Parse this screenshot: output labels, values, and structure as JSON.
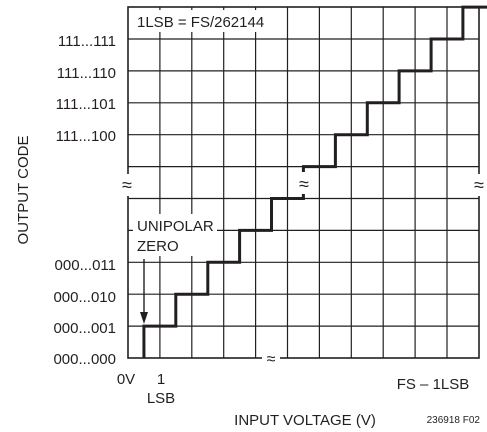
{
  "chart_data": {
    "type": "line",
    "title": "",
    "annotation_lsb": "1LSB = FS/262144",
    "xlabel": "INPUT VOLTAGE (V)",
    "ylabel": "OUTPUT CODE",
    "x_tick_labels": {
      "start": "0V",
      "lsb_top": "1",
      "lsb_bottom": "LSB",
      "end": "FS – 1LSB"
    },
    "y_tick_labels_top": [
      "111...111",
      "111...110",
      "111...101",
      "111...100"
    ],
    "y_tick_labels_bottom": [
      "000...011",
      "000...010",
      "000...001",
      "000...000"
    ],
    "break_symbol": "≈",
    "unipolar_zero_top": "UNIPOLAR",
    "unipolar_zero_bottom": "ZERO",
    "figure_code": "236918 F02",
    "grid": true,
    "series": [
      {
        "x": [
          0.5,
          1.5,
          1.5,
          2.5,
          2.5,
          3.5,
          3.5,
          4.5,
          4.5,
          5.5,
          5.5,
          6.5,
          6.5,
          7.5,
          7.5,
          8.5,
          8.5,
          9.5,
          9.5,
          10.5,
          10.5,
          11.5
        ],
        "y": [
          1,
          1,
          2,
          2,
          3,
          3,
          4,
          4,
          5,
          5,
          6,
          6,
          7,
          7,
          8,
          8,
          9,
          9,
          10,
          10,
          11,
          11
        ]
      }
    ]
  }
}
